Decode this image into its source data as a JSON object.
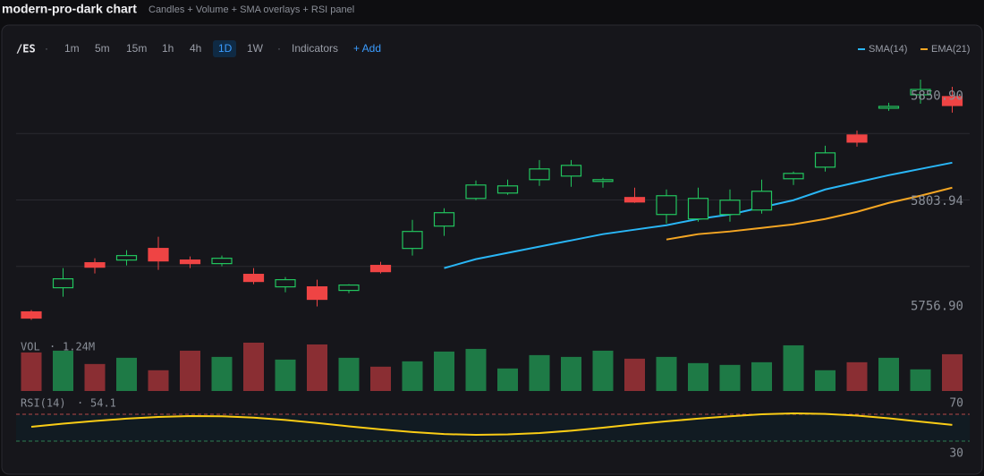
{
  "header": {
    "title": "modern-pro-dark chart",
    "subtitle": "Candles + Volume + SMA overlays + RSI panel"
  },
  "toolbar": {
    "symbol": "/ES",
    "separator": "·",
    "timeframes": [
      {
        "label": "1m"
      },
      {
        "label": "5m"
      },
      {
        "label": "15m"
      },
      {
        "label": "1h"
      },
      {
        "label": "4h"
      },
      {
        "label": "1D",
        "active": true
      },
      {
        "label": "1W"
      }
    ],
    "indicators": "Indicators",
    "add": "+ Add"
  },
  "chart_data": {
    "type": "candlestick",
    "ylim": [
      5745,
      5864
    ],
    "yticks": [
      {
        "value": 5850.9,
        "label": "5850.90"
      },
      5803.94,
      {
        "value": 5756.9,
        "label": "5756.90"
      }
    ],
    "grid": true,
    "up_color": "#22c55e",
    "down_color": "#ef4444",
    "open": [
      5754.4,
      5765.2,
      5776.4,
      5777.6,
      5782.8,
      5777.6,
      5776.0,
      5771.2,
      5765.6,
      5765.6,
      5764.0,
      5775.2,
      5782.8,
      5792.8,
      5805.2,
      5807.6,
      5813.6,
      5815.2,
      5812.8,
      5805.6,
      5798.0,
      5796.0,
      5798.0,
      5800.0,
      5814.0,
      5819.2,
      5833.6,
      5845.6,
      5851.6,
      5850.8
    ],
    "high": [
      5755.2,
      5774.0,
      5778.4,
      5782.0,
      5788.0,
      5779.2,
      5779.6,
      5774.0,
      5770.0,
      5768.8,
      5766.8,
      5776.8,
      5795.6,
      5800.8,
      5813.2,
      5813.6,
      5822.4,
      5822.4,
      5814.4,
      5810.0,
      5809.2,
      5810.0,
      5809.2,
      5813.6,
      5817.2,
      5828.8,
      5835.6,
      5848.0,
      5858.4,
      5855.2
    ],
    "low": [
      5750.8,
      5761.2,
      5771.6,
      5775.2,
      5773.2,
      5774.0,
      5774.8,
      5766.8,
      5763.2,
      5756.8,
      5762.8,
      5771.6,
      5779.6,
      5788.4,
      5804.4,
      5806.8,
      5810.8,
      5810.4,
      5810.0,
      5803.2,
      5794.0,
      5794.8,
      5794.8,
      5798.4,
      5811.2,
      5817.2,
      5828.4,
      5844.4,
      5847.6,
      5843.6
    ],
    "close": [
      5751.6,
      5769.2,
      5774.4,
      5779.6,
      5777.2,
      5776.0,
      5778.4,
      5768.0,
      5768.8,
      5760.0,
      5766.4,
      5772.4,
      5790.4,
      5798.8,
      5811.2,
      5810.8,
      5818.4,
      5820.0,
      5813.6,
      5803.6,
      5806.4,
      5805.2,
      5804.4,
      5808.4,
      5816.4,
      5825.6,
      5830.4,
      5846.4,
      5854.0,
      5846.8
    ],
    "series": [
      {
        "name": "SMA(14)",
        "color": "#29b6f6",
        "values": [
          null,
          null,
          null,
          null,
          null,
          null,
          null,
          null,
          null,
          null,
          null,
          null,
          null,
          5774.0,
          5778.0,
          5780.8,
          5783.6,
          5786.4,
          5789.2,
          5791.2,
          5793.2,
          5796.0,
          5798.0,
          5801.2,
          5804.4,
          5809.2,
          5812.4,
          5815.6,
          5818.4,
          5821.2
        ]
      },
      {
        "name": "EMA(21)",
        "color": "#f5a623",
        "values": [
          null,
          null,
          null,
          null,
          null,
          null,
          null,
          null,
          null,
          null,
          null,
          null,
          null,
          null,
          null,
          null,
          null,
          null,
          null,
          null,
          5786.8,
          5789.2,
          5790.4,
          5792.0,
          5793.6,
          5796.0,
          5799.2,
          5803.2,
          5806.4,
          5810.0
        ]
      }
    ],
    "volume": {
      "label": "VOL",
      "last_label": "1.24M",
      "ylim": [
        0,
        1.72
      ],
      "up_color": "#1e7a46",
      "down_color": "#8a2e33",
      "values": [
        1.3,
        1.36,
        0.91,
        1.12,
        0.7,
        1.36,
        1.15,
        1.63,
        1.06,
        1.57,
        1.12,
        0.82,
        1.0,
        1.33,
        1.42,
        0.76,
        1.21,
        1.15,
        1.36,
        1.09,
        1.15,
        0.94,
        0.88,
        0.97,
        1.54,
        0.7,
        0.97,
        1.12,
        0.73,
        1.24
      ]
    },
    "rsi": {
      "label": "RSI(14)",
      "last_label": "54.1",
      "ylim": [
        10,
        94
      ],
      "color": "#facc15",
      "levels": [
        70,
        30
      ],
      "values": [
        51.3,
        56,
        60,
        63.5,
        66,
        67.3,
        67,
        65,
        61.5,
        57,
        52,
        47.5,
        43.5,
        40.5,
        39.3,
        40,
        42,
        45.5,
        50,
        55,
        59.5,
        63.5,
        67,
        70,
        71.3,
        70.5,
        68,
        64,
        59,
        54.1
      ]
    }
  }
}
